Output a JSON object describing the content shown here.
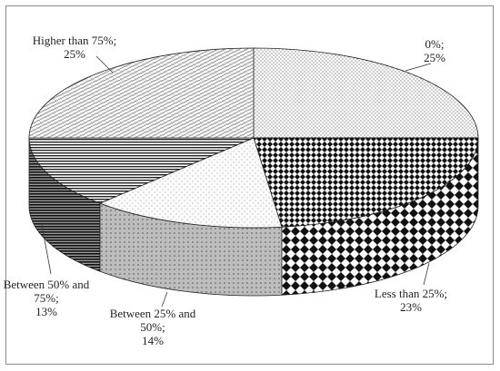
{
  "chart_data": {
    "type": "pie",
    "style": "3d",
    "title": "",
    "slices": [
      {
        "label_lines": [
          "0%;",
          "25%"
        ],
        "value": 25,
        "pattern": "dots"
      },
      {
        "label_lines": [
          "Less than 25%;",
          "23%"
        ],
        "value": 23,
        "pattern": "checker"
      },
      {
        "label_lines": [
          "Between 25% and",
          "50%;",
          "14%"
        ],
        "value": 14,
        "pattern": "sparse-dots"
      },
      {
        "label_lines": [
          "Between 50% and",
          "75%;",
          "13%"
        ],
        "value": 13,
        "pattern": "horizontal-lines"
      },
      {
        "label_lines": [
          "Higher than  75%;",
          "25%"
        ],
        "value": 25,
        "pattern": "weave"
      }
    ],
    "legend": "none"
  }
}
